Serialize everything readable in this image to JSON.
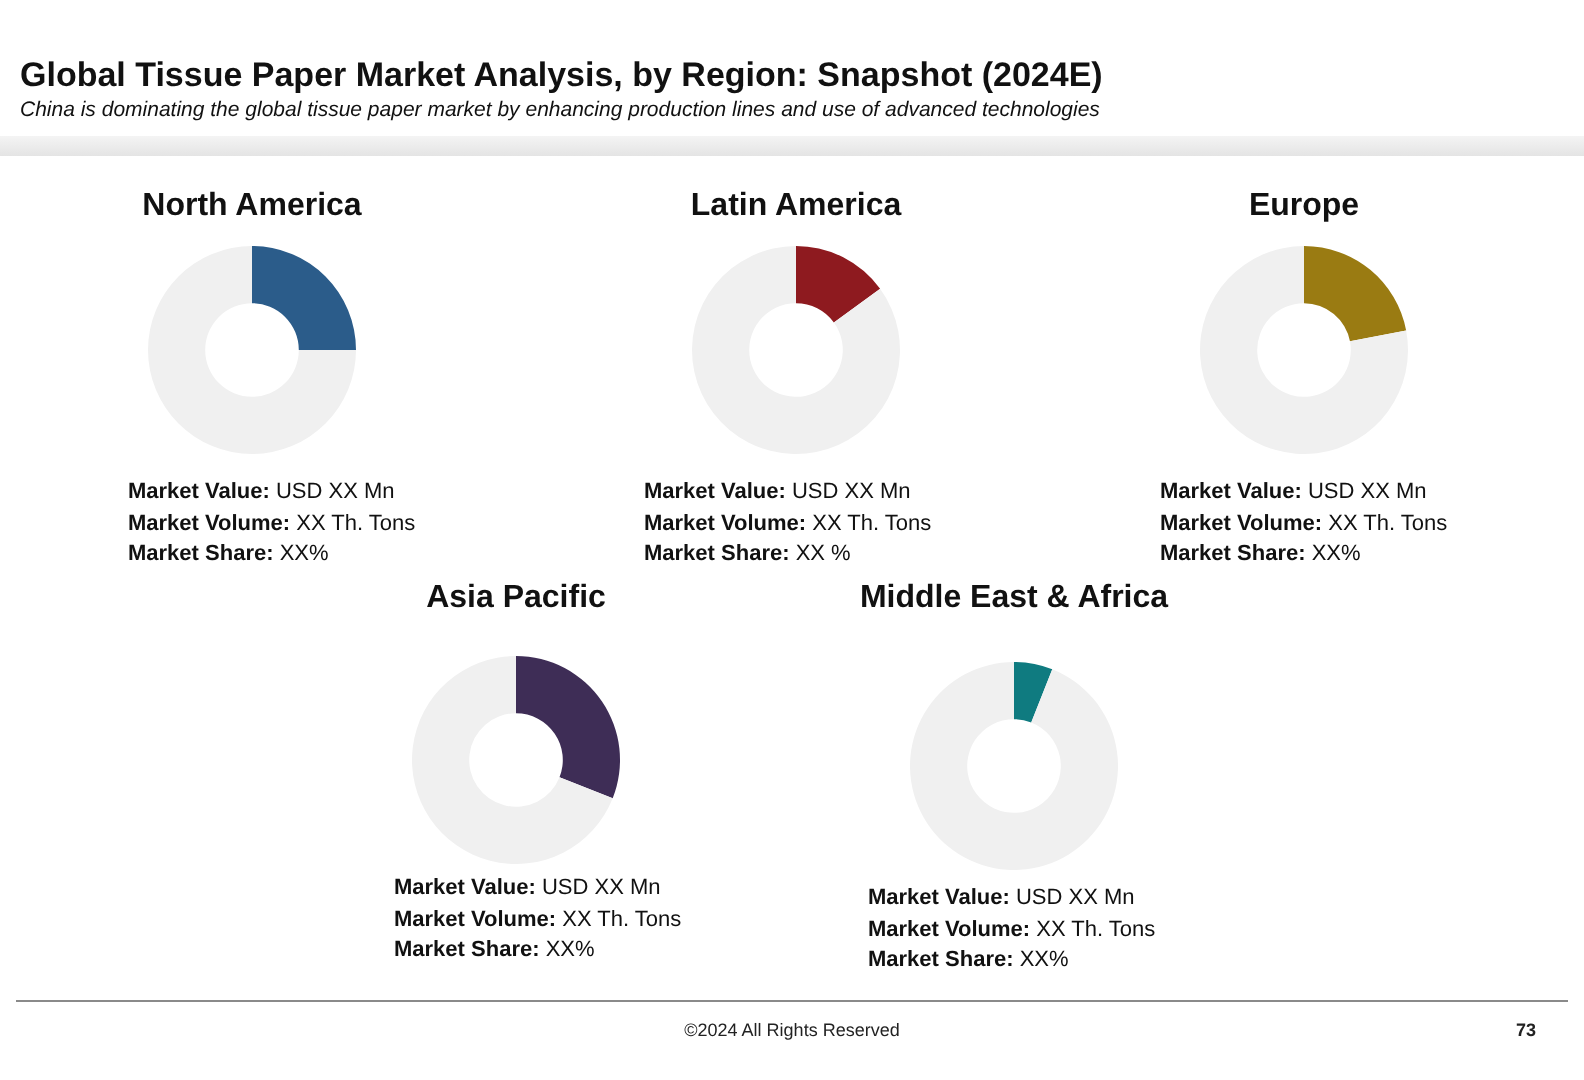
{
  "chart_data": [
    {
      "type": "other",
      "title": "Global Tissue Paper Market Analysis, by Region: Snapshot (2024E)",
      "subtitle": "China is dominating the global tissue paper market by enhancing production lines and use of advanced technologies",
      "annotations": [
        "©2024 All Rights Reserved",
        "73"
      ]
    },
    {
      "type": "donut",
      "title": "North America",
      "categories": [
        null,
        null
      ],
      "values": [
        25,
        75
      ],
      "colors": [
        "#2b5c8a",
        "#f0f0f0"
      ],
      "annotations": [
        "Market Value: USD XX Mn",
        "Market Volume: XX Th. Tons",
        "Market Share: XX%"
      ]
    },
    {
      "type": "donut",
      "title": "Latin America",
      "categories": [
        null,
        null
      ],
      "values": [
        15,
        85
      ],
      "colors": [
        "#8e1a1f",
        "#f0f0f0"
      ],
      "annotations": [
        "Market Value: USD XX Mn",
        "Market Volume: XX Th. Tons",
        "Market Share: XX %"
      ]
    },
    {
      "type": "donut",
      "title": "Europe",
      "categories": [
        null,
        null
      ],
      "values": [
        22,
        78
      ],
      "colors": [
        "#9a7b12",
        "#f0f0f0"
      ],
      "annotations": [
        "Market Value: USD XX Mn",
        "Market Volume: XX Th. Tons",
        "Market Share: XX%"
      ]
    },
    {
      "type": "donut",
      "title": "Asia Pacific",
      "categories": [
        null,
        null
      ],
      "values": [
        31,
        69
      ],
      "colors": [
        "#3e2d56",
        "#f0f0f0"
      ],
      "annotations": [
        "Market Value: USD XX Mn",
        "Market Volume: XX Th. Tons",
        "Market Share: XX%"
      ]
    },
    {
      "type": "donut",
      "title": "Middle East & Africa",
      "categories": [
        null,
        null
      ],
      "values": [
        6,
        94
      ],
      "colors": [
        "#0f7b80",
        "#f0f0f0"
      ],
      "annotations": [
        "Market Value: USD XX Mn",
        "Market Volume: XX Th. Tons",
        "Market Share: XX%"
      ]
    }
  ]
}
